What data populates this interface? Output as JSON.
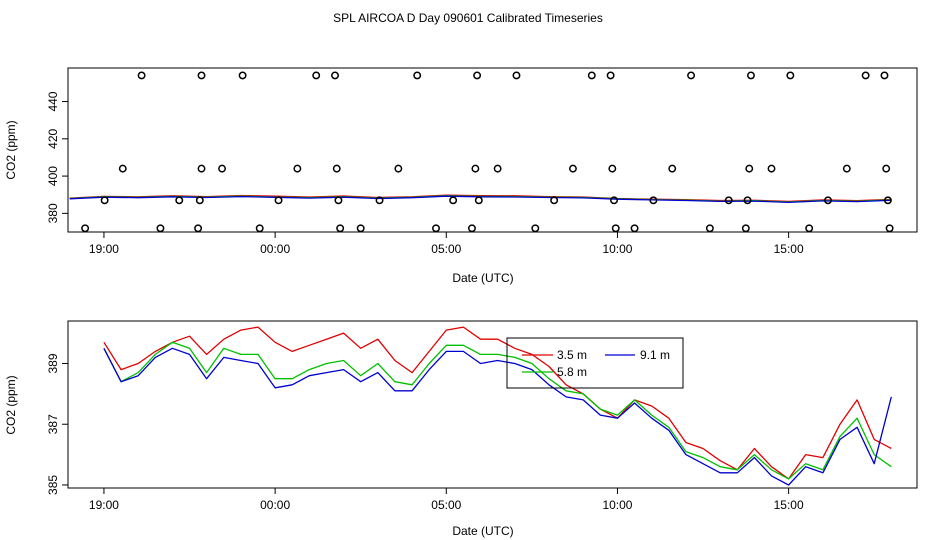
{
  "title": "SPL AIRCOA D  Day 090601  Calibrated Timeseries",
  "colors": {
    "series_red": "#e00000",
    "series_green": "#00c000",
    "series_blue": "#0000d0",
    "axes": "#000000",
    "points": "#000000"
  },
  "chart_data": [
    {
      "type": "scatter",
      "xlabel": "Date (UTC)",
      "ylabel": "CO2 (ppm)",
      "x_unit": "hours relative to 00:00 on the day (negative = previous day)",
      "xlim": [
        -6.05,
        18.75
      ],
      "ylim": [
        370,
        458
      ],
      "x_ticks": [
        -5,
        0,
        5,
        10,
        15
      ],
      "x_tick_labels": [
        "19:00",
        "00:00",
        "05:00",
        "10:00",
        "15:00"
      ],
      "y_ticks": [
        380,
        400,
        420,
        440
      ],
      "y_tick_labels": [
        "380",
        "400",
        "420",
        "440"
      ],
      "grid": false,
      "points": [
        {
          "x": -5.55,
          "y": 372
        },
        {
          "x": -4.98,
          "y": 387
        },
        {
          "x": -4.45,
          "y": 404
        },
        {
          "x": -3.9,
          "y": 454
        },
        {
          "x": -3.35,
          "y": 372
        },
        {
          "x": -2.8,
          "y": 387
        },
        {
          "x": -2.25,
          "y": 372
        },
        {
          "x": -2.2,
          "y": 387
        },
        {
          "x": -2.15,
          "y": 404
        },
        {
          "x": -2.15,
          "y": 454
        },
        {
          "x": -1.55,
          "y": 404
        },
        {
          "x": -0.95,
          "y": 454
        },
        {
          "x": -0.45,
          "y": 372
        },
        {
          "x": 0.1,
          "y": 387
        },
        {
          "x": 0.65,
          "y": 404
        },
        {
          "x": 1.2,
          "y": 454
        },
        {
          "x": 1.75,
          "y": 454
        },
        {
          "x": 1.8,
          "y": 404
        },
        {
          "x": 1.85,
          "y": 387
        },
        {
          "x": 1.9,
          "y": 372
        },
        {
          "x": 2.5,
          "y": 372
        },
        {
          "x": 3.05,
          "y": 387
        },
        {
          "x": 3.6,
          "y": 404
        },
        {
          "x": 4.15,
          "y": 454
        },
        {
          "x": 4.7,
          "y": 372
        },
        {
          "x": 5.2,
          "y": 387
        },
        {
          "x": 5.75,
          "y": 372
        },
        {
          "x": 5.85,
          "y": 404
        },
        {
          "x": 5.9,
          "y": 454
        },
        {
          "x": 5.95,
          "y": 387
        },
        {
          "x": 6.5,
          "y": 404
        },
        {
          "x": 7.05,
          "y": 454
        },
        {
          "x": 7.6,
          "y": 372
        },
        {
          "x": 8.15,
          "y": 387
        },
        {
          "x": 8.7,
          "y": 404
        },
        {
          "x": 9.25,
          "y": 454
        },
        {
          "x": 9.8,
          "y": 454
        },
        {
          "x": 9.85,
          "y": 404
        },
        {
          "x": 9.9,
          "y": 387
        },
        {
          "x": 9.95,
          "y": 372
        },
        {
          "x": 10.5,
          "y": 372
        },
        {
          "x": 11.05,
          "y": 387
        },
        {
          "x": 11.6,
          "y": 404
        },
        {
          "x": 12.15,
          "y": 454
        },
        {
          "x": 12.7,
          "y": 372
        },
        {
          "x": 13.25,
          "y": 387
        },
        {
          "x": 13.75,
          "y": 372
        },
        {
          "x": 13.8,
          "y": 387
        },
        {
          "x": 13.85,
          "y": 404
        },
        {
          "x": 13.9,
          "y": 454
        },
        {
          "x": 14.5,
          "y": 404
        },
        {
          "x": 15.05,
          "y": 454
        },
        {
          "x": 15.6,
          "y": 372
        },
        {
          "x": 16.15,
          "y": 387
        },
        {
          "x": 16.7,
          "y": 404
        },
        {
          "x": 17.25,
          "y": 454
        },
        {
          "x": 17.8,
          "y": 454
        },
        {
          "x": 17.85,
          "y": 404
        },
        {
          "x": 17.9,
          "y": 387
        },
        {
          "x": 17.95,
          "y": 372
        }
      ],
      "series": [
        {
          "color": "#e00000",
          "x": [
            -6,
            -5,
            -4,
            -3,
            -2,
            -1,
            0,
            1,
            2,
            3,
            4,
            5,
            6,
            7,
            8,
            9,
            10,
            11,
            12,
            13,
            14,
            15,
            16,
            17,
            18
          ],
          "y": [
            388.2,
            389.1,
            388.9,
            389.4,
            389.0,
            389.6,
            389.2,
            388.8,
            389.3,
            388.5,
            388.9,
            389.8,
            389.5,
            389.4,
            389.0,
            388.8,
            388.0,
            387.6,
            387.4,
            386.9,
            387.0,
            386.4,
            387.2,
            386.8,
            387.5
          ]
        },
        {
          "color": "#00c000",
          "x": [
            -6,
            -5,
            -4,
            -3,
            -2,
            -1,
            0,
            1,
            2,
            3,
            4,
            5,
            6,
            7,
            8,
            9,
            10,
            11,
            12,
            13,
            14,
            15,
            16,
            17,
            18
          ],
          "y": [
            388.0,
            388.9,
            388.6,
            389.1,
            388.7,
            389.2,
            388.8,
            388.4,
            388.9,
            388.2,
            388.6,
            389.4,
            389.1,
            389.0,
            388.7,
            388.5,
            387.8,
            387.4,
            387.1,
            386.6,
            386.8,
            386.1,
            386.9,
            386.5,
            387.2
          ]
        },
        {
          "color": "#0000d0",
          "x": [
            -6,
            -5,
            -4,
            -3,
            -2,
            -1,
            0,
            1,
            2,
            3,
            4,
            5,
            6,
            7,
            8,
            9,
            10,
            11,
            12,
            13,
            14,
            15,
            16,
            17,
            18
          ],
          "y": [
            387.8,
            388.7,
            388.4,
            388.9,
            388.5,
            389.0,
            388.6,
            388.2,
            388.7,
            388.0,
            388.4,
            389.2,
            388.9,
            388.8,
            388.5,
            388.3,
            387.6,
            387.2,
            386.9,
            386.4,
            386.6,
            385.9,
            386.7,
            386.3,
            387.0
          ]
        }
      ]
    },
    {
      "type": "line",
      "xlabel": "Date (UTC)",
      "ylabel": "CO2 (ppm)",
      "x_unit": "hours relative to 00:00 on the day (negative = previous day)",
      "xlim": [
        -6.05,
        18.75
      ],
      "ylim": [
        384.9,
        390.4
      ],
      "x_ticks": [
        -5,
        0,
        5,
        10,
        15
      ],
      "x_tick_labels": [
        "19:00",
        "00:00",
        "05:00",
        "10:00",
        "15:00"
      ],
      "y_ticks": [
        385,
        387,
        389
      ],
      "y_tick_labels": [
        "385",
        "387",
        "389"
      ],
      "grid": false,
      "legend_position": "top-center",
      "legend": [
        {
          "label": "3.5 m",
          "color": "#e00000"
        },
        {
          "label": "9.1 m",
          "color": "#0000d0"
        },
        {
          "label": "5.8 m",
          "color": "#00c000"
        }
      ],
      "series": [
        {
          "name": "3.5 m",
          "color": "#e00000",
          "x": [
            -5.0,
            -4.5,
            -4.0,
            -3.5,
            -3.0,
            -2.5,
            -2.0,
            -1.5,
            -1.0,
            -0.5,
            0.0,
            0.5,
            1.0,
            1.5,
            2.0,
            2.5,
            3.0,
            3.5,
            4.0,
            4.5,
            5.0,
            5.5,
            6.0,
            6.5,
            7.0,
            7.5,
            8.0,
            8.5,
            9.0,
            9.5,
            10.0,
            10.5,
            11.0,
            11.5,
            12.0,
            12.5,
            13.0,
            13.5,
            14.0,
            14.5,
            15.0,
            15.5,
            16.0,
            16.5,
            17.0,
            17.5,
            18.0
          ],
          "y": [
            389.7,
            388.8,
            389.0,
            389.4,
            389.7,
            389.9,
            389.3,
            389.8,
            390.1,
            390.2,
            389.7,
            389.4,
            389.6,
            389.8,
            390.0,
            389.5,
            389.8,
            389.1,
            388.7,
            389.4,
            390.1,
            390.2,
            389.8,
            389.8,
            389.5,
            389.3,
            388.9,
            388.3,
            388.0,
            387.5,
            387.2,
            387.8,
            387.6,
            387.2,
            386.4,
            386.2,
            385.8,
            385.5,
            386.2,
            385.6,
            385.2,
            386.0,
            385.9,
            387.0,
            387.8,
            386.5,
            386.2
          ]
        },
        {
          "name": "5.8 m",
          "color": "#00c000",
          "x": [
            -5.0,
            -4.5,
            -4.0,
            -3.5,
            -3.0,
            -2.5,
            -2.0,
            -1.5,
            -1.0,
            -0.5,
            0.0,
            0.5,
            1.0,
            1.5,
            2.0,
            2.5,
            3.0,
            3.5,
            4.0,
            4.5,
            5.0,
            5.5,
            6.0,
            6.5,
            7.0,
            7.5,
            8.0,
            8.5,
            9.0,
            9.5,
            10.0,
            10.5,
            11.0,
            11.5,
            12.0,
            12.5,
            13.0,
            13.5,
            14.0,
            14.5,
            15.0,
            15.5,
            16.0,
            16.5,
            17.0,
            17.5,
            18.0
          ],
          "y": [
            389.5,
            388.4,
            388.7,
            389.3,
            389.7,
            389.5,
            388.7,
            389.5,
            389.3,
            389.3,
            388.5,
            388.5,
            388.8,
            389.0,
            389.1,
            388.6,
            389.0,
            388.4,
            388.3,
            389.0,
            389.6,
            389.6,
            389.3,
            389.3,
            389.2,
            389.0,
            388.5,
            388.1,
            388.0,
            387.5,
            387.3,
            387.8,
            387.3,
            386.9,
            386.1,
            385.9,
            385.6,
            385.5,
            386.0,
            385.5,
            385.2,
            385.7,
            385.5,
            386.6,
            387.2,
            386.0,
            385.6
          ]
        },
        {
          "name": "9.1 m",
          "color": "#0000d0",
          "x": [
            -5.0,
            -4.5,
            -4.0,
            -3.5,
            -3.0,
            -2.5,
            -2.0,
            -1.5,
            -1.0,
            -0.5,
            0.0,
            0.5,
            1.0,
            1.5,
            2.0,
            2.5,
            3.0,
            3.5,
            4.0,
            4.5,
            5.0,
            5.5,
            6.0,
            6.5,
            7.0,
            7.5,
            8.0,
            8.5,
            9.0,
            9.5,
            10.0,
            10.5,
            11.0,
            11.5,
            12.0,
            12.5,
            13.0,
            13.5,
            14.0,
            14.5,
            15.0,
            15.5,
            16.0,
            16.5,
            17.0,
            17.5,
            18.0
          ],
          "y": [
            389.5,
            388.4,
            388.6,
            389.2,
            389.5,
            389.3,
            388.5,
            389.2,
            389.1,
            389.0,
            388.2,
            388.3,
            388.6,
            388.7,
            388.8,
            388.4,
            388.7,
            388.1,
            388.1,
            388.8,
            389.4,
            389.4,
            389.0,
            389.1,
            389.0,
            388.8,
            388.3,
            387.9,
            387.8,
            387.3,
            387.2,
            387.7,
            387.2,
            386.8,
            386.0,
            385.7,
            385.4,
            385.4,
            385.9,
            385.3,
            385.0,
            385.6,
            385.4,
            386.5,
            386.9,
            385.7,
            387.9
          ]
        }
      ]
    }
  ]
}
